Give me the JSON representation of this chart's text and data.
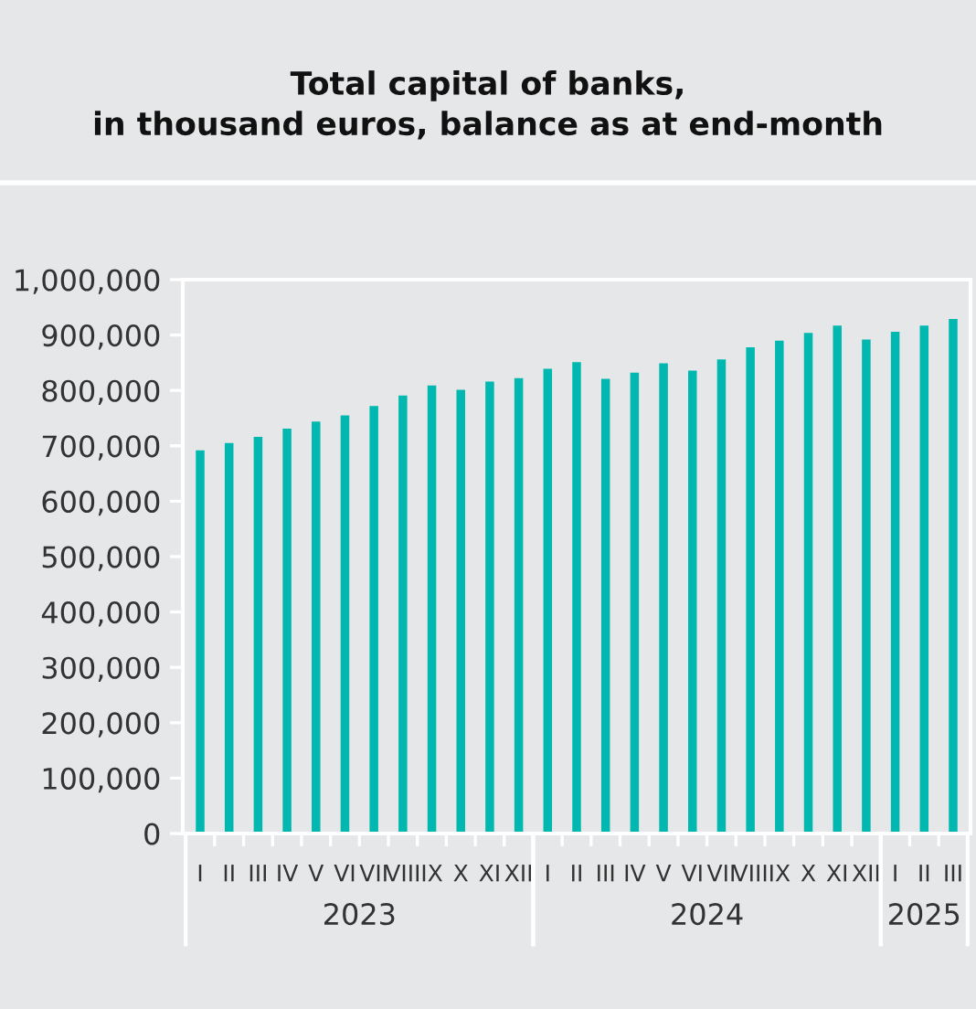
{
  "chart_data": {
    "type": "bar",
    "title": "Total capital of banks,\nin thousand euros, balance as at end-month",
    "categories": [
      "I",
      "II",
      "III",
      "IV",
      "V",
      "VI",
      "VII",
      "VIII",
      "IX",
      "X",
      "XI",
      "XII",
      "I",
      "II",
      "III",
      "IV",
      "V",
      "VI",
      "VII",
      "VIII",
      "IX",
      "X",
      "XI",
      "XII",
      "I",
      "II",
      "III"
    ],
    "values": [
      692000,
      705000,
      716000,
      731000,
      744000,
      755000,
      772000,
      791000,
      809000,
      801000,
      816000,
      822000,
      839000,
      851000,
      821000,
      832000,
      849000,
      836000,
      856000,
      878000,
      890000,
      904000,
      917000,
      892000,
      906000,
      917000,
      929000
    ],
    "color": "#00b8b0",
    "annotations": [
      "2023",
      "2024",
      "2025"
    ],
    "ylim": [
      0,
      1000000
    ],
    "yticks": [
      {
        "value": 0,
        "label": "0"
      },
      {
        "value": 100000,
        "label": "100,000"
      },
      {
        "value": 200000,
        "label": "200,000"
      },
      {
        "value": 300000,
        "label": "300,000"
      },
      {
        "value": 400000,
        "label": "400,000"
      },
      {
        "value": 500000,
        "label": "500,000"
      },
      {
        "value": 600000,
        "label": "600,000"
      },
      {
        "value": 700000,
        "label": "700,000"
      },
      {
        "value": 800000,
        "label": "800,000"
      },
      {
        "value": 900000,
        "label": "900,000"
      },
      {
        "value": 1000000,
        "label": "1,000,000"
      }
    ],
    "grid": false,
    "legend": false
  }
}
